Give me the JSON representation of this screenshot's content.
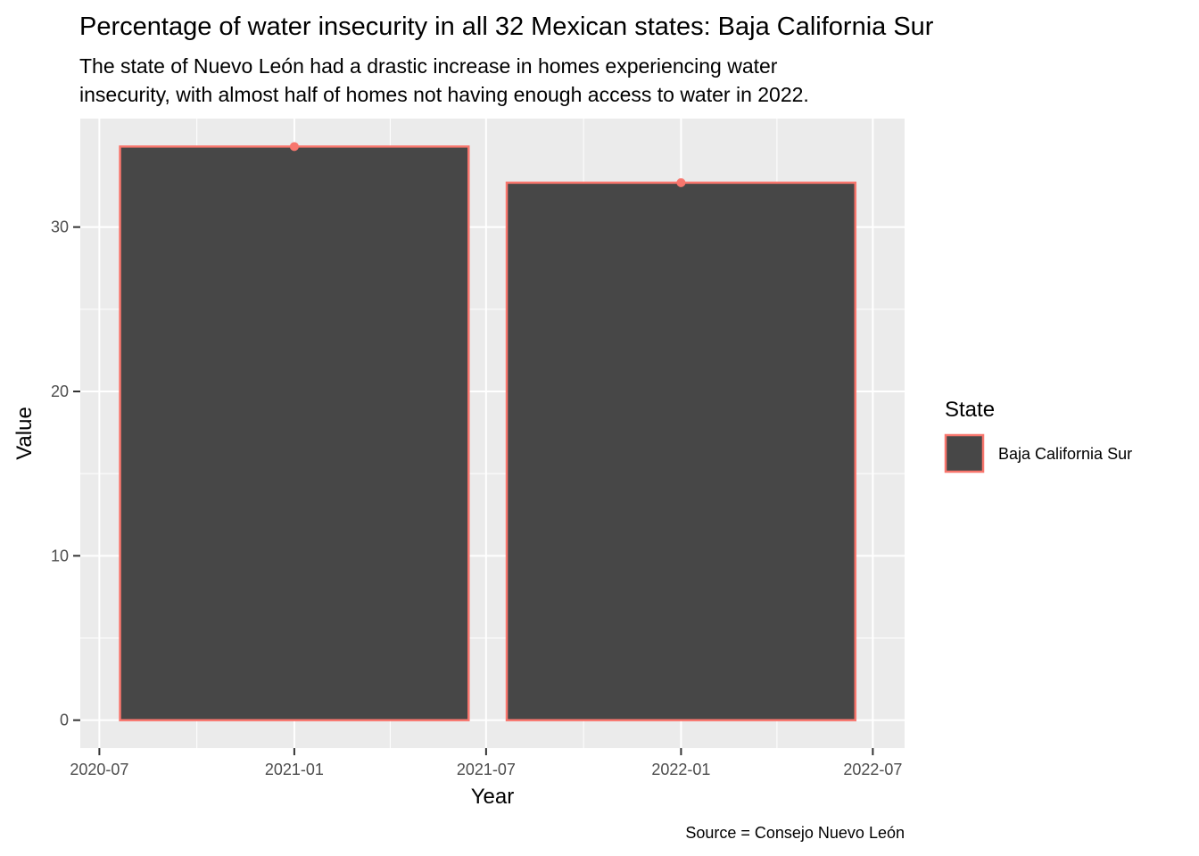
{
  "chart_data": {
    "type": "bar",
    "title": "Percentage of water insecurity in all 32 Mexican states: Baja California Sur",
    "subtitle_lines": [
      "The state of Nuevo León had a drastic increase in homes experiencing water",
      "insecurity, with almost half of homes not having enough access to water in 2022."
    ],
    "xlabel": "Year",
    "ylabel": "Value",
    "caption": "Source = Consejo Nuevo León",
    "x_ticks": [
      "2020-07",
      "2021-01",
      "2021-07",
      "2022-01",
      "2022-07"
    ],
    "x_tick_values": [
      "2020-07-01",
      "2021-01-01",
      "2021-07-01",
      "2022-01-01",
      "2022-07-01"
    ],
    "y_ticks": [
      0,
      10,
      20,
      30
    ],
    "ylim": [
      -1.7,
      36.6
    ],
    "xlim": [
      "2020-06-13",
      "2022-07-31"
    ],
    "grid": true,
    "legend": {
      "title": "State",
      "position": "right"
    },
    "series": [
      {
        "name": "Baja California Sur",
        "fill": "#474747",
        "outline": "#F8766D",
        "points": [
          {
            "x": "2021-01-01",
            "value": 34.9
          },
          {
            "x": "2022-01-01",
            "value": 32.7
          }
        ]
      }
    ],
    "bar_width_days": 329
  }
}
